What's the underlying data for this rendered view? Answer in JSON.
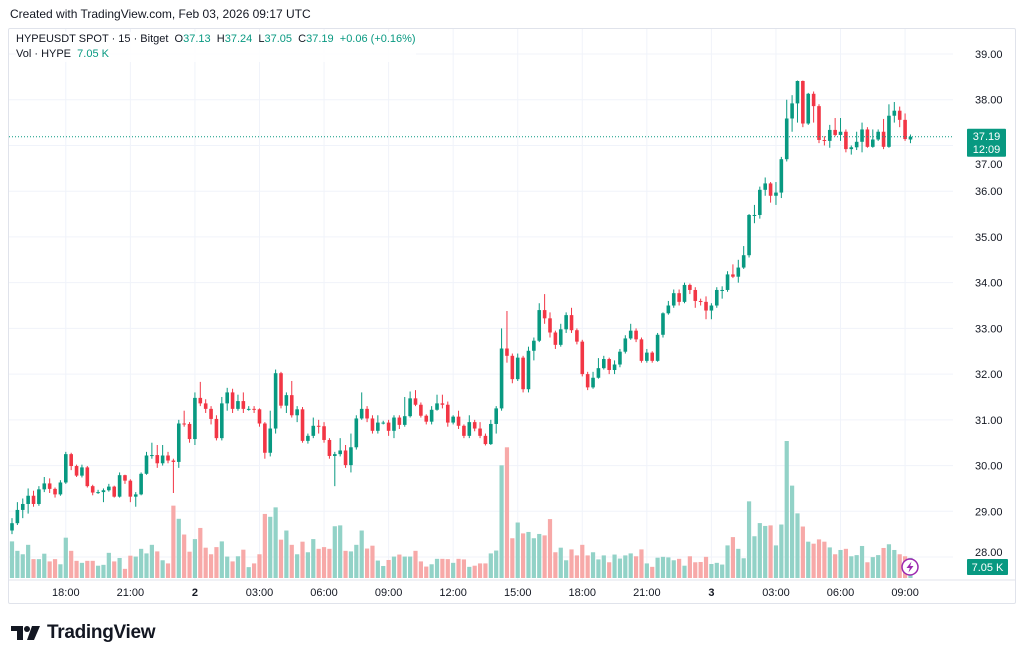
{
  "header": {
    "created": "Created with TradingView.com, Feb 03, 2026 09:17 UTC"
  },
  "legend": {
    "symbol": "HYPEUSDT SPOT · 15 · Bitget",
    "o_label": "O",
    "o": "37.13",
    "h_label": "H",
    "h": "37.24",
    "l_label": "L",
    "l": "37.05",
    "c_label": "C",
    "c": "37.19",
    "change": "+0.06 (+0.16%)",
    "vol_label": "Vol · HYPE",
    "vol": "7.05 K"
  },
  "badges": {
    "price": "37.19",
    "countdown": "12:09",
    "volume": "7.05 K"
  },
  "footer": {
    "logo": "TradingView"
  },
  "icons": {
    "alert": "lightning-icon"
  },
  "colors": {
    "up": "#089981",
    "down": "#F23645",
    "vol_up": "#92d2c7",
    "vol_down": "#f7a9a8",
    "alert": "#9c27b0"
  },
  "chart_data": {
    "type": "candlestick",
    "symbol": "HYPEUSDT",
    "interval_minutes": 15,
    "ylim": [
      27.8,
      39.2
    ],
    "y_ticks": [
      "28.00",
      "29.00",
      "30.00",
      "31.00",
      "32.00",
      "33.00",
      "34.00",
      "35.00",
      "36.00",
      "37.00",
      "38.00",
      "39.00"
    ],
    "x_ticks": [
      {
        "label": "18:00",
        "index": 10,
        "bold": false
      },
      {
        "label": "21:00",
        "index": 22,
        "bold": false
      },
      {
        "label": "2",
        "index": 34,
        "bold": true
      },
      {
        "label": "03:00",
        "index": 46,
        "bold": false
      },
      {
        "label": "06:00",
        "index": 58,
        "bold": false
      },
      {
        "label": "09:00",
        "index": 70,
        "bold": false
      },
      {
        "label": "12:00",
        "index": 82,
        "bold": false
      },
      {
        "label": "15:00",
        "index": 94,
        "bold": false
      },
      {
        "label": "18:00",
        "index": 106,
        "bold": false
      },
      {
        "label": "21:00",
        "index": 118,
        "bold": false
      },
      {
        "label": "3",
        "index": 130,
        "bold": true
      },
      {
        "label": "03:00",
        "index": 142,
        "bold": false
      },
      {
        "label": "06:00",
        "index": 154,
        "bold": false
      },
      {
        "label": "09:00",
        "index": 166,
        "bold": false
      }
    ],
    "last_price": 37.19,
    "grid": true,
    "volume_unit": "K",
    "columns": [
      "open",
      "high",
      "low",
      "close",
      "volume"
    ],
    "candles": [
      [
        28.58,
        28.85,
        28.5,
        28.74,
        12.8
      ],
      [
        28.74,
        29.2,
        28.7,
        29.03,
        9.5
      ],
      [
        29.03,
        29.28,
        28.85,
        29.16,
        8.3
      ],
      [
        29.16,
        29.5,
        28.95,
        29.34,
        11.6
      ],
      [
        29.34,
        29.45,
        29.1,
        29.16,
        6.6
      ],
      [
        29.16,
        29.55,
        29.12,
        29.48,
        6.6
      ],
      [
        29.48,
        29.75,
        29.42,
        29.61,
        8.5
      ],
      [
        29.61,
        29.72,
        29.4,
        29.49,
        5.8
      ],
      [
        29.49,
        29.52,
        29.3,
        29.37,
        6.6
      ],
      [
        29.37,
        29.68,
        29.34,
        29.63,
        4.8
      ],
      [
        29.63,
        30.3,
        29.6,
        30.25,
        14.1
      ],
      [
        30.25,
        30.28,
        29.9,
        29.99,
        9.5
      ],
      [
        29.99,
        30.02,
        29.75,
        29.78,
        6.0
      ],
      [
        29.78,
        30.02,
        29.74,
        29.96,
        5.3
      ],
      [
        29.96,
        29.99,
        29.52,
        29.55,
        6.0
      ],
      [
        29.55,
        29.58,
        29.35,
        29.41,
        6.0
      ],
      [
        29.41,
        29.47,
        29.38,
        29.42,
        4.3
      ],
      [
        29.42,
        29.5,
        29.2,
        29.46,
        4.6
      ],
      [
        29.46,
        29.6,
        29.43,
        29.54,
        8.8
      ],
      [
        29.54,
        29.56,
        29.3,
        29.32,
        5.8
      ],
      [
        29.32,
        29.85,
        29.3,
        29.79,
        7.0
      ],
      [
        29.79,
        29.8,
        29.6,
        29.67,
        3.2
      ],
      [
        29.67,
        29.7,
        29.2,
        29.32,
        7.8
      ],
      [
        29.32,
        29.42,
        29.1,
        29.37,
        7.5
      ],
      [
        29.37,
        29.85,
        29.35,
        29.82,
        10.2
      ],
      [
        29.82,
        30.3,
        29.8,
        30.22,
        8.6
      ],
      [
        30.22,
        30.5,
        30.15,
        30.23,
        11.6
      ],
      [
        30.23,
        30.45,
        29.95,
        30.05,
        9.3
      ],
      [
        30.05,
        30.45,
        30.0,
        30.22,
        6.2
      ],
      [
        30.22,
        30.3,
        30.05,
        30.11,
        5.1
      ],
      [
        30.11,
        30.15,
        29.4,
        30.08,
        25.3
      ],
      [
        30.08,
        31.0,
        29.95,
        30.92,
        20.7
      ],
      [
        30.92,
        31.2,
        30.85,
        30.91,
        15.2
      ],
      [
        30.91,
        30.95,
        30.5,
        30.58,
        9.2
      ],
      [
        30.58,
        31.6,
        30.45,
        31.48,
        13.6
      ],
      [
        31.48,
        31.83,
        31.3,
        31.36,
        17.5
      ],
      [
        31.36,
        31.45,
        31.15,
        31.24,
        10.6
      ],
      [
        31.24,
        31.3,
        30.9,
        31.02,
        8.3
      ],
      [
        31.02,
        31.1,
        30.55,
        30.6,
        10.8
      ],
      [
        30.6,
        31.5,
        30.55,
        31.36,
        12.8
      ],
      [
        31.36,
        31.7,
        31.2,
        31.6,
        7.5
      ],
      [
        31.6,
        31.68,
        31.15,
        31.24,
        5.8
      ],
      [
        31.24,
        31.55,
        31.2,
        31.41,
        7.6
      ],
      [
        31.41,
        31.6,
        31.15,
        31.24,
        9.9
      ],
      [
        31.24,
        31.3,
        31.2,
        31.24,
        3.8
      ],
      [
        31.24,
        31.3,
        31.15,
        31.23,
        5.1
      ],
      [
        31.23,
        31.25,
        30.85,
        30.92,
        8.3
      ],
      [
        30.92,
        30.95,
        30.15,
        30.28,
        22.4
      ],
      [
        30.28,
        31.2,
        30.2,
        30.81,
        21.4
      ],
      [
        30.81,
        32.1,
        30.7,
        32.02,
        24.7
      ],
      [
        32.02,
        32.05,
        31.25,
        31.31,
        13.4
      ],
      [
        31.31,
        31.6,
        31.15,
        31.54,
        16.6
      ],
      [
        31.54,
        31.85,
        31.05,
        31.1,
        11.6
      ],
      [
        31.1,
        31.3,
        30.95,
        31.23,
        8.3
      ],
      [
        31.23,
        31.28,
        30.5,
        30.54,
        12.7
      ],
      [
        30.54,
        30.7,
        30.48,
        30.65,
        9.0
      ],
      [
        30.65,
        31.05,
        30.6,
        30.87,
        13.6
      ],
      [
        30.87,
        31.0,
        30.7,
        30.86,
        10.2
      ],
      [
        30.86,
        30.95,
        30.5,
        30.56,
        10.8
      ],
      [
        30.56,
        30.6,
        30.15,
        30.21,
        10.2
      ],
      [
        30.21,
        30.3,
        29.55,
        30.25,
        18.1
      ],
      [
        30.25,
        30.6,
        30.2,
        30.33,
        18.4
      ],
      [
        30.33,
        30.45,
        29.95,
        30.01,
        9.5
      ],
      [
        30.01,
        30.7,
        29.85,
        30.4,
        9.3
      ],
      [
        30.4,
        31.1,
        30.35,
        31.03,
        11.6
      ],
      [
        31.03,
        31.6,
        31.0,
        31.24,
        16.6
      ],
      [
        31.24,
        31.3,
        30.95,
        31.03,
        10.3
      ],
      [
        31.03,
        31.1,
        30.7,
        30.76,
        11.3
      ],
      [
        30.76,
        31.1,
        30.7,
        30.94,
        6.1
      ],
      [
        30.94,
        30.98,
        30.9,
        30.94,
        4.2
      ],
      [
        30.94,
        31.0,
        30.65,
        30.76,
        6.3
      ],
      [
        30.76,
        31.1,
        30.6,
        31.05,
        7.5
      ],
      [
        31.05,
        31.1,
        30.8,
        30.89,
        8.2
      ],
      [
        30.89,
        31.5,
        30.85,
        31.08,
        7.5
      ],
      [
        31.08,
        31.62,
        31.05,
        31.47,
        7.5
      ],
      [
        31.47,
        31.65,
        31.3,
        31.33,
        9.5
      ],
      [
        31.33,
        31.38,
        31.05,
        31.09,
        5.8
      ],
      [
        31.09,
        31.12,
        30.9,
        30.96,
        4.0
      ],
      [
        30.96,
        31.3,
        30.9,
        31.22,
        4.8
      ],
      [
        31.22,
        31.55,
        31.2,
        31.36,
        6.7
      ],
      [
        31.36,
        31.55,
        31.25,
        31.33,
        6.7
      ],
      [
        31.33,
        31.4,
        30.85,
        30.94,
        6.6
      ],
      [
        30.94,
        31.1,
        30.9,
        31.07,
        5.3
      ],
      [
        31.07,
        31.2,
        30.8,
        30.87,
        6.7
      ],
      [
        30.87,
        30.9,
        30.6,
        30.65,
        6.5
      ],
      [
        30.65,
        31.1,
        30.6,
        30.95,
        3.9
      ],
      [
        30.95,
        31.0,
        30.75,
        30.81,
        4.3
      ],
      [
        30.81,
        30.95,
        30.6,
        30.65,
        5.1
      ],
      [
        30.65,
        30.7,
        30.44,
        30.47,
        5.1
      ],
      [
        30.47,
        31.0,
        30.45,
        30.91,
        8.6
      ],
      [
        30.91,
        31.3,
        30.7,
        31.25,
        9.6
      ],
      [
        31.25,
        33.0,
        31.2,
        32.56,
        39.4
      ],
      [
        32.56,
        33.38,
        32.25,
        32.4,
        45.7
      ],
      [
        32.4,
        32.45,
        31.8,
        31.89,
        13.9
      ],
      [
        31.89,
        32.45,
        31.85,
        32.36,
        19.4
      ],
      [
        32.36,
        32.4,
        31.6,
        31.67,
        15.6
      ],
      [
        31.67,
        32.6,
        31.6,
        32.51,
        16.1
      ],
      [
        32.51,
        32.8,
        32.3,
        32.73,
        13.9
      ],
      [
        32.73,
        33.55,
        32.7,
        33.4,
        15.4
      ],
      [
        33.4,
        33.75,
        33.1,
        33.22,
        14.9
      ],
      [
        33.22,
        33.35,
        32.8,
        32.91,
        20.6
      ],
      [
        32.91,
        32.95,
        32.55,
        32.64,
        9.0
      ],
      [
        32.64,
        33.1,
        32.6,
        32.98,
        10.6
      ],
      [
        32.98,
        33.35,
        32.9,
        33.29,
        6.2
      ],
      [
        33.29,
        33.45,
        32.9,
        32.96,
        10.0
      ],
      [
        32.96,
        33.0,
        32.65,
        32.71,
        7.9
      ],
      [
        32.71,
        32.75,
        31.95,
        32.0,
        11.6
      ],
      [
        32.0,
        32.05,
        31.65,
        31.71,
        7.9
      ],
      [
        31.71,
        32.05,
        31.68,
        31.92,
        9.0
      ],
      [
        31.92,
        32.35,
        31.9,
        32.13,
        6.5
      ],
      [
        32.13,
        32.4,
        32.1,
        32.33,
        7.9
      ],
      [
        32.33,
        32.36,
        32.0,
        32.09,
        5.5
      ],
      [
        32.09,
        32.3,
        32.0,
        32.21,
        8.2
      ],
      [
        32.21,
        32.55,
        32.15,
        32.49,
        6.8
      ],
      [
        32.49,
        32.85,
        32.45,
        32.78,
        7.9
      ],
      [
        32.78,
        33.1,
        32.75,
        32.95,
        8.6
      ],
      [
        32.95,
        33.0,
        32.7,
        32.76,
        7.6
      ],
      [
        32.76,
        32.8,
        32.25,
        32.29,
        10.0
      ],
      [
        32.29,
        32.55,
        32.25,
        32.47,
        5.1
      ],
      [
        32.47,
        32.5,
        32.25,
        32.29,
        3.9
      ],
      [
        32.29,
        32.9,
        32.27,
        32.86,
        7.1
      ],
      [
        32.86,
        33.35,
        32.8,
        33.33,
        7.4
      ],
      [
        33.33,
        33.6,
        33.3,
        33.5,
        7.2
      ],
      [
        33.5,
        33.85,
        33.45,
        33.77,
        6.2
      ],
      [
        33.77,
        33.85,
        33.5,
        33.58,
        6.7
      ],
      [
        33.58,
        34.0,
        33.55,
        33.95,
        4.3
      ],
      [
        33.95,
        33.98,
        33.75,
        33.84,
        7.6
      ],
      [
        33.84,
        33.9,
        33.45,
        33.6,
        5.5
      ],
      [
        33.6,
        33.65,
        33.5,
        33.58,
        5.6
      ],
      [
        33.58,
        33.7,
        33.2,
        33.39,
        7.4
      ],
      [
        33.39,
        33.55,
        33.2,
        33.5,
        4.9
      ],
      [
        33.5,
        33.9,
        33.45,
        33.84,
        5.3
      ],
      [
        33.84,
        33.92,
        33.65,
        33.84,
        4.7
      ],
      [
        33.84,
        34.25,
        33.8,
        34.18,
        11.4
      ],
      [
        34.18,
        34.4,
        34.1,
        34.13,
        14.3
      ],
      [
        34.13,
        34.5,
        34.0,
        34.33,
        10.2
      ],
      [
        34.33,
        34.8,
        34.3,
        34.6,
        6.9
      ],
      [
        34.6,
        35.5,
        34.55,
        35.48,
        26.8
      ],
      [
        35.48,
        35.7,
        35.3,
        35.48,
        14.6
      ],
      [
        35.48,
        36.1,
        35.4,
        36.03,
        19.2
      ],
      [
        36.03,
        36.3,
        35.9,
        36.17,
        18.2
      ],
      [
        36.17,
        36.2,
        35.75,
        35.9,
        18.4
      ],
      [
        35.9,
        36.2,
        35.7,
        35.97,
        11.4
      ],
      [
        35.97,
        36.75,
        35.85,
        36.7,
        18.7
      ],
      [
        36.7,
        38.0,
        36.65,
        37.59,
        47.9
      ],
      [
        37.59,
        38.1,
        37.3,
        37.92,
        32.3
      ],
      [
        37.92,
        38.42,
        37.5,
        38.41,
        22.6
      ],
      [
        38.41,
        38.42,
        37.4,
        37.48,
        18.0
      ],
      [
        37.48,
        38.15,
        37.45,
        38.13,
        12.7
      ],
      [
        38.13,
        38.18,
        37.5,
        37.86,
        12.0
      ],
      [
        37.86,
        37.9,
        37.05,
        37.12,
        13.5
      ],
      [
        37.12,
        37.2,
        37.0,
        37.1,
        12.7
      ],
      [
        37.1,
        37.45,
        36.95,
        37.34,
        10.7
      ],
      [
        37.34,
        37.6,
        37.2,
        37.23,
        8.3
      ],
      [
        37.23,
        37.6,
        37.1,
        37.3,
        9.8
      ],
      [
        37.3,
        37.35,
        36.85,
        36.92,
        10.2
      ],
      [
        36.92,
        37.0,
        36.8,
        36.96,
        7.6
      ],
      [
        36.96,
        37.3,
        36.9,
        37.08,
        8.0
      ],
      [
        37.08,
        37.5,
        36.85,
        37.35,
        11.2
      ],
      [
        37.35,
        37.4,
        36.95,
        36.97,
        5.5
      ],
      [
        36.97,
        37.35,
        36.95,
        37.13,
        7.3
      ],
      [
        37.13,
        37.35,
        37.1,
        37.3,
        8.0
      ],
      [
        37.3,
        37.58,
        36.92,
        36.97,
        10.5
      ],
      [
        36.97,
        37.9,
        36.95,
        37.65,
        11.8
      ],
      [
        37.65,
        37.95,
        37.5,
        37.76,
        9.8
      ],
      [
        37.76,
        37.85,
        37.4,
        37.56,
        8.3
      ],
      [
        37.56,
        37.7,
        37.1,
        37.14,
        7.6
      ],
      [
        37.13,
        37.24,
        37.05,
        37.19,
        7.05
      ]
    ]
  }
}
